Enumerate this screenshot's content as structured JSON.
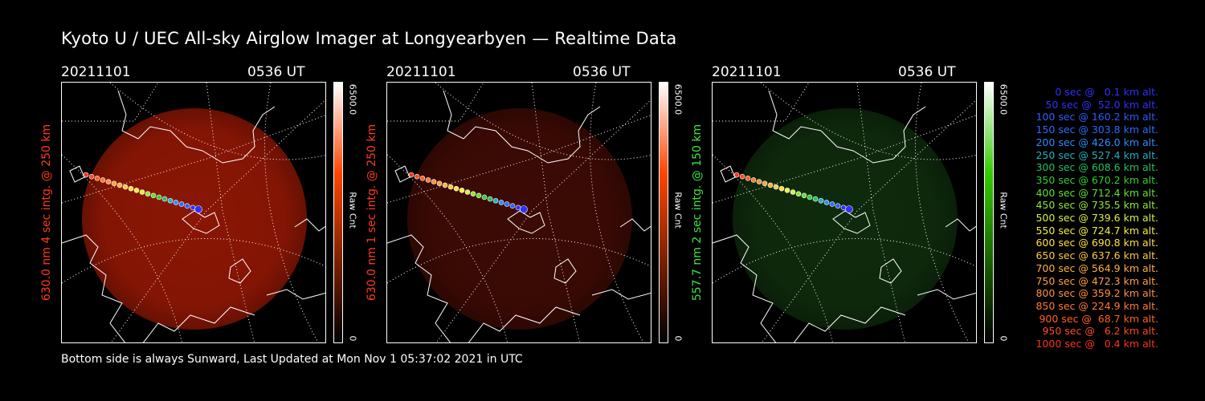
{
  "title": "Kyoto U / UEC All-sky Airglow Imager at Longyearbyen — Realtime Data",
  "footer": "Bottom side is always Sunward, Last Updated at Mon Nov  1 05:37:02 2021 in UTC",
  "panels": [
    {
      "date": "20211101",
      "time": "0536 UT",
      "ylabel": "630.0 nm 4 sec intg. @ 250 km",
      "ylabel_color": "#ff3b1f",
      "cbar_max": "6500.0",
      "cbar_label": "Raw Cnt",
      "cbar_min": "0",
      "cbar_color": "#ff4400",
      "image_color": "#8a1604"
    },
    {
      "date": "20211101",
      "time": "0536 UT",
      "ylabel": "630.0 nm 1 sec intg. @ 250 km",
      "ylabel_color": "#ff3b1f",
      "cbar_max": "6500.0",
      "cbar_label": "Raw Cnt",
      "cbar_min": "0",
      "cbar_color": "#ff4400",
      "image_color": "#3c0a04"
    },
    {
      "date": "20211101",
      "time": "0536 UT",
      "ylabel": "557.7 nm 2 sec intg. @ 150 km",
      "ylabel_color": "#3ee63e",
      "cbar_max": "6500.0",
      "cbar_label": "Raw Cnt",
      "cbar_min": "0",
      "cbar_color": "#33cc00",
      "image_color": "#0e2a0c"
    }
  ],
  "legend": [
    {
      "text": "0 sec @   0.1 km alt.",
      "color": "#3030ff"
    },
    {
      "text": "50 sec @  52.0 km alt.",
      "color": "#3030ff"
    },
    {
      "text": "100 sec @ 160.2 km alt.",
      "color": "#2a5cff"
    },
    {
      "text": "150 sec @ 303.8 km alt.",
      "color": "#2a6cff"
    },
    {
      "text": "200 sec @ 426.0 km alt.",
      "color": "#2a8cff"
    },
    {
      "text": "250 sec @ 527.4 km alt.",
      "color": "#20b0c0"
    },
    {
      "text": "300 sec @ 608.6 km alt.",
      "color": "#22c060"
    },
    {
      "text": "350 sec @ 670.2 km alt.",
      "color": "#30d030"
    },
    {
      "text": "400 sec @ 712.4 km alt.",
      "color": "#60e030"
    },
    {
      "text": "450 sec @ 735.5 km alt.",
      "color": "#90e830"
    },
    {
      "text": "500 sec @ 739.6 km alt.",
      "color": "#d8f040"
    },
    {
      "text": "550 sec @ 724.7 km alt.",
      "color": "#f0f040"
    },
    {
      "text": "600 sec @ 690.8 km alt.",
      "color": "#ffe040"
    },
    {
      "text": "650 sec @ 637.6 km alt.",
      "color": "#ffc840"
    },
    {
      "text": "700 sec @ 564.9 km alt.",
      "color": "#ffb040"
    },
    {
      "text": "750 sec @ 472.3 km alt.",
      "color": "#ffa040"
    },
    {
      "text": "800 sec @ 359.2 km alt.",
      "color": "#ff9040"
    },
    {
      "text": "850 sec @ 224.9 km alt.",
      "color": "#ff7a30"
    },
    {
      "text": "900 sec @  68.7 km alt.",
      "color": "#ff6020"
    },
    {
      "text": "950 sec @   6.2 km alt.",
      "color": "#ff4a20"
    },
    {
      "text": "1000 sec @   0.4 km alt.",
      "color": "#ff3020"
    }
  ]
}
